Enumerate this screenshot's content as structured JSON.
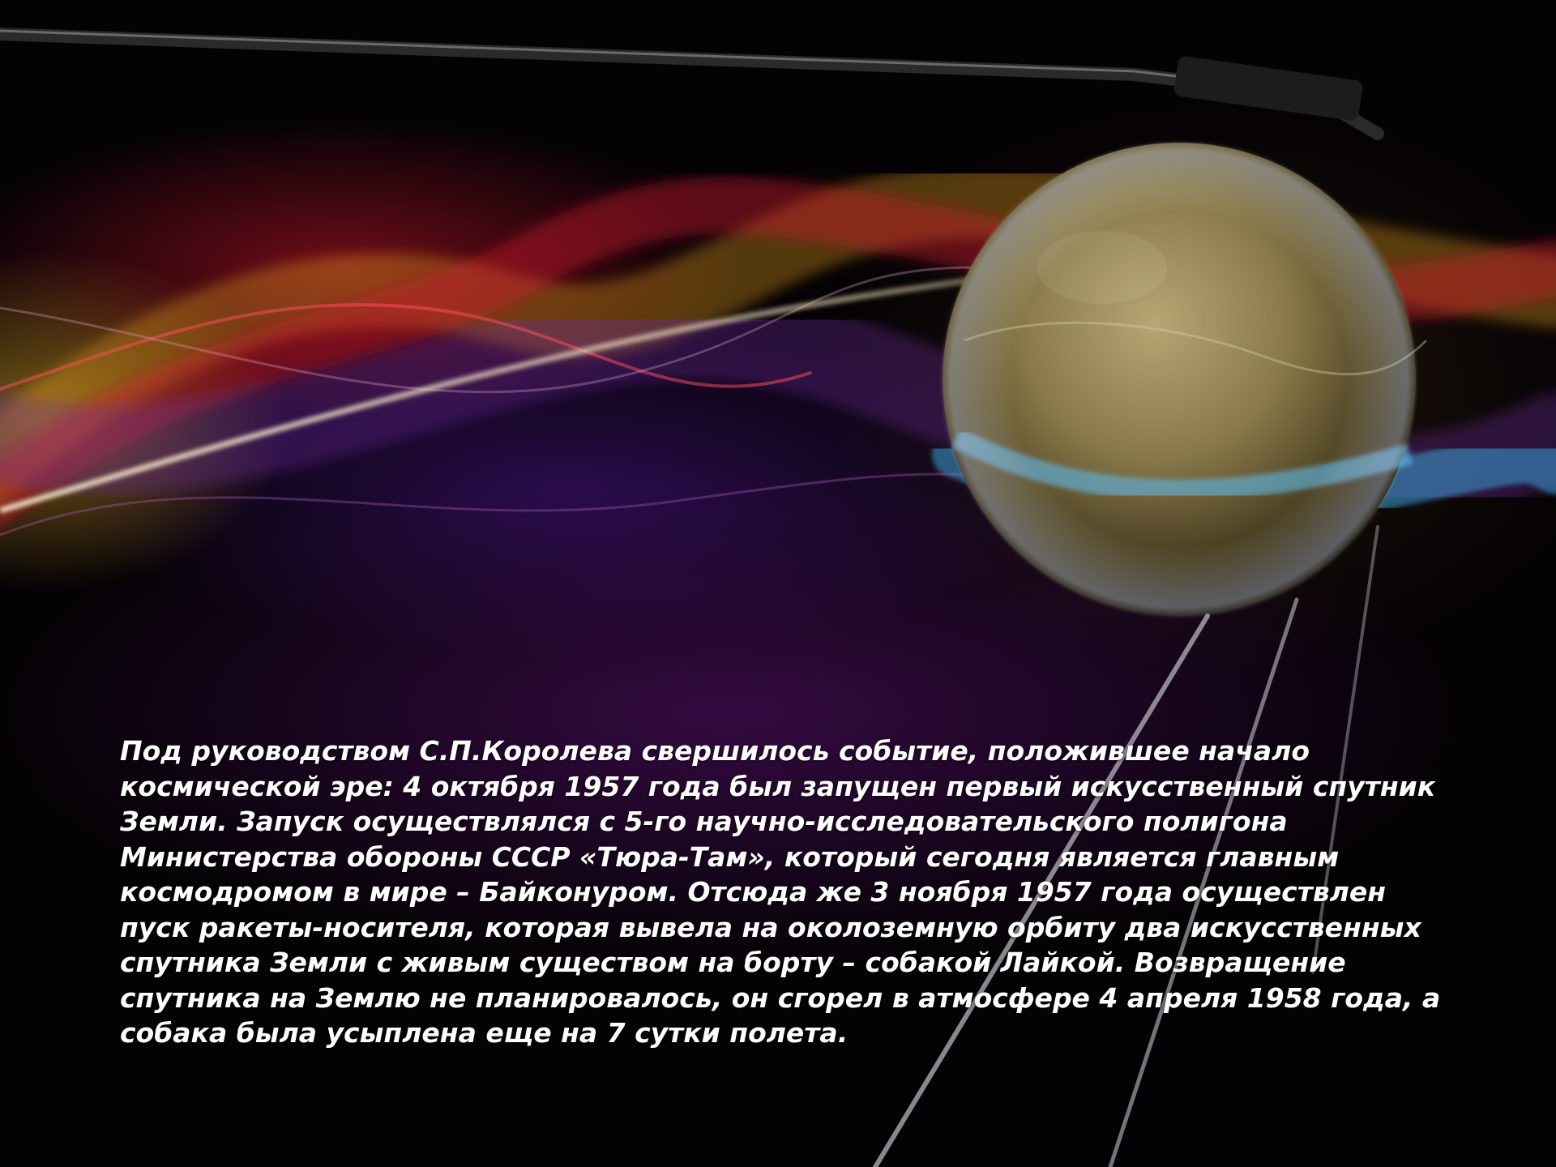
{
  "caption": {
    "lines": [
      "Под  руководством С.П.Королева свершилось событие, положившее начало",
      "космической эре: 4 октября 1957 года был запущен первый искусственный спутник",
      "Земли. Запуск осуществлялся с 5-го научно-исследовательского полигона",
      "Министерства обороны СССР «Тюра-Там», который сегодня является главным",
      "космодромом в мире – Байконуром. Отсюда же 3 ноября 1957 года осуществлен",
      "пуск ракеты-носителя, которая вывела на околоземную орбиту два искусственных",
      "спутника Земли с живым существом на борту – собакой Лайкой. Возвращение",
      "спутника на Землю не планировалось, он сгорел в атмосфере 4 апреля 1958 года, а",
      "собака была усыплена еще на 7 сутки полета."
    ]
  },
  "illustration": {
    "subject": "satellite-sphere",
    "colors": {
      "sphere": "#8a7a4a",
      "wave_red": "#c8142a",
      "wave_orange": "#e8a020",
      "wave_blue": "#3aa0d8",
      "wave_violet": "#6a2a9a",
      "light_streak": "#f8e8c0"
    }
  }
}
